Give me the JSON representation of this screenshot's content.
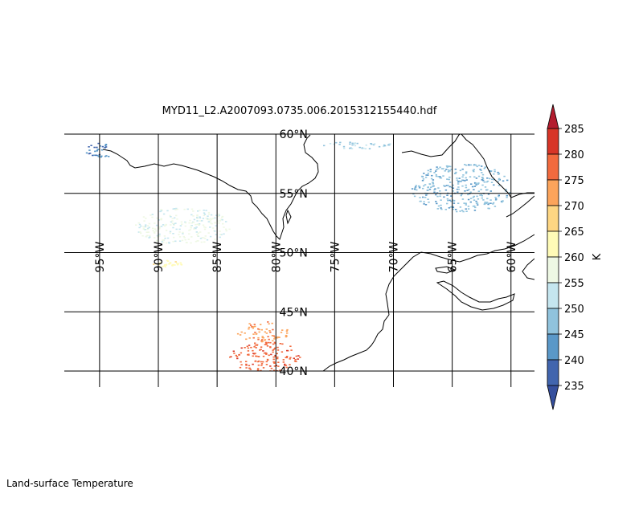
{
  "title": "MYD11_L2.A2007093.0735.006.2015312155440.hdf",
  "footer_label": "Land-surface Temperature",
  "map": {
    "projection": "plate-carree",
    "lon_min": -98.0,
    "lon_max": -58.0,
    "lat_min": 40.0,
    "lat_max": 60.0,
    "grid": true,
    "parallels": [
      {
        "value": 60,
        "label": "60°N"
      },
      {
        "value": 55,
        "label": "55°N"
      },
      {
        "value": 50,
        "label": "50°N"
      },
      {
        "value": 45,
        "label": "45°N"
      },
      {
        "value": 40,
        "label": "40°N"
      }
    ],
    "meridians": [
      {
        "value": -95,
        "label": "95°W"
      },
      {
        "value": -90,
        "label": "90°W"
      },
      {
        "value": -85,
        "label": "85°W"
      },
      {
        "value": -80,
        "label": "80°W"
      },
      {
        "value": -75,
        "label": "75°W"
      },
      {
        "value": -70,
        "label": "70°W"
      },
      {
        "value": -65,
        "label": "65°W"
      },
      {
        "value": -60,
        "label": "60°W"
      }
    ]
  },
  "colorbar": {
    "unit": "K",
    "ticks": [
      "285",
      "280",
      "275",
      "270",
      "265",
      "260",
      "255",
      "250",
      "245",
      "240",
      "235"
    ],
    "colors": [
      "#4165ae",
      "#5a98c8",
      "#90c3dd",
      "#c5e6ef",
      "#eef8e4",
      "#fffbb7",
      "#fed683",
      "#fca45b",
      "#f26a3e",
      "#d73527"
    ],
    "under_color": "#354f9d",
    "over_color": "#b31c2e",
    "extend": "both"
  },
  "chart_data": {
    "type": "heatmap",
    "title": "MYD11_L2.A2007093.0735.006.2015312155440.hdf",
    "xlabel": "",
    "ylabel": "",
    "variable": "Land-surface Temperature",
    "units": "K",
    "range": [
      235,
      285
    ],
    "regions": [
      {
        "lon": [
          -96.2,
          -93.8
        ],
        "lat": [
          58.0,
          59.3
        ],
        "value": 240
      },
      {
        "lon": [
          -92.0,
          -84.0
        ],
        "lat": [
          50.8,
          53.8
        ],
        "value": 256
      },
      {
        "lon": [
          -90.5,
          -88.0
        ],
        "lat": [
          48.8,
          49.4
        ],
        "value": 263
      },
      {
        "lon": [
          -76.0,
          -70.0
        ],
        "lat": [
          58.8,
          59.4
        ],
        "value": 249
      },
      {
        "lon": [
          -68.5,
          -60.0
        ],
        "lat": [
          53.5,
          57.5
        ],
        "value": 246
      },
      {
        "lon": [
          -83.5,
          -79.0
        ],
        "lat": [
          42.5,
          44.2
        ],
        "value": 273
      },
      {
        "lon": [
          -84.0,
          -78.0
        ],
        "lat": [
          40.0,
          42.5
        ],
        "value": 278
      }
    ]
  }
}
